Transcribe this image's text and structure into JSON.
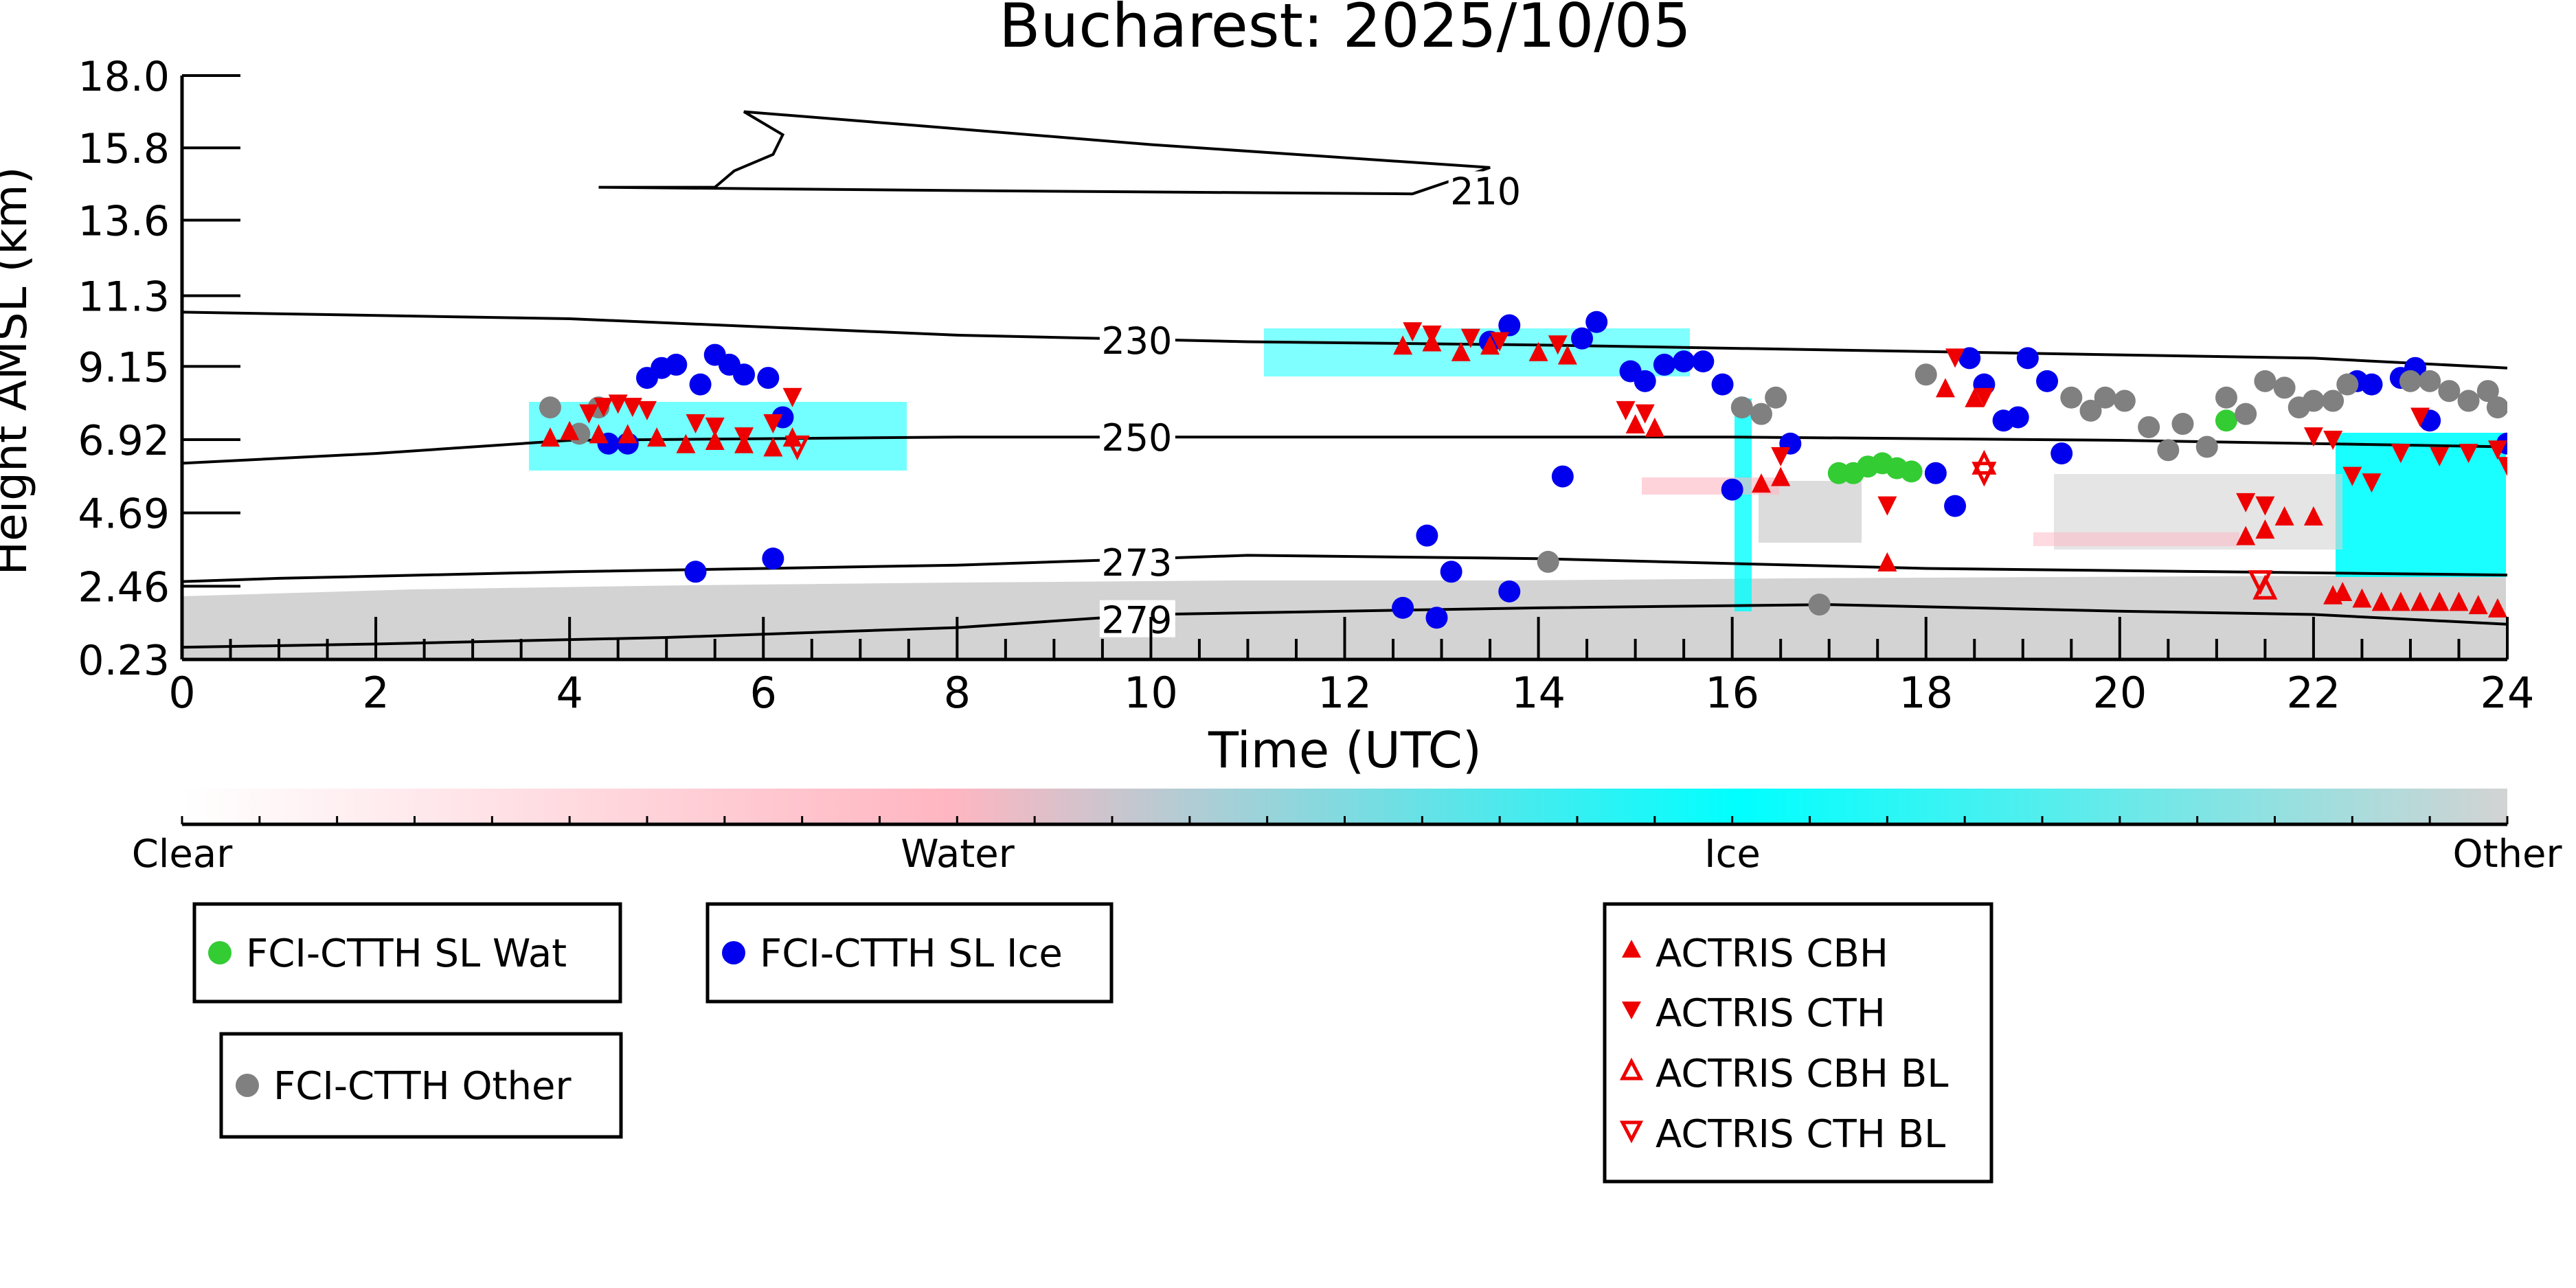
{
  "chart_data": {
    "type": "scatter",
    "title": "Bucharest: 2025/10/05",
    "xlabel": "Time (UTC)",
    "ylabel": "Height AMSL (km)",
    "xlim": [
      0,
      24
    ],
    "ylim": [
      0.23,
      18.0
    ],
    "x_ticks": [
      "0",
      "2",
      "4",
      "6",
      "8",
      "10",
      "12",
      "14",
      "16",
      "18",
      "20",
      "22",
      "24"
    ],
    "y_ticks": [
      "0.23",
      "2.46",
      "4.69",
      "6.92",
      "9.15",
      "11.3",
      "13.6",
      "15.8",
      "18.0"
    ],
    "y_tick_values": [
      0.23,
      2.46,
      4.69,
      6.92,
      9.15,
      11.3,
      13.6,
      15.8,
      18.0
    ],
    "grid": false,
    "contours": [
      {
        "label": "210",
        "points": [
          [
            4.3,
            14.6
          ],
          [
            5.5,
            14.6
          ],
          [
            5.7,
            15.1
          ],
          [
            6.1,
            15.6
          ],
          [
            6.2,
            16.2
          ],
          [
            5.8,
            16.9
          ],
          [
            7.5,
            16.5
          ],
          [
            10,
            15.9
          ],
          [
            13.5,
            15.2
          ],
          [
            12.7,
            14.4
          ],
          [
            8,
            14.5
          ],
          [
            4.3,
            14.6
          ]
        ],
        "label_at": [
          13.1,
          14.5
        ]
      },
      {
        "label": "230",
        "points": [
          [
            0,
            10.8
          ],
          [
            4,
            10.6
          ],
          [
            8,
            10.1
          ],
          [
            11,
            9.9
          ],
          [
            14,
            9.8
          ],
          [
            18,
            9.6
          ],
          [
            22,
            9.4
          ],
          [
            24,
            9.1
          ]
        ],
        "label_at": [
          9.5,
          9.95
        ]
      },
      {
        "label": "250",
        "points": [
          [
            0,
            6.2
          ],
          [
            2,
            6.5
          ],
          [
            4,
            6.9
          ],
          [
            8,
            7.0
          ],
          [
            12,
            7.0
          ],
          [
            16,
            7.0
          ],
          [
            20,
            6.9
          ],
          [
            24,
            6.7
          ]
        ],
        "label_at": [
          9.5,
          7.0
        ]
      },
      {
        "label": "273",
        "points": [
          [
            0,
            2.6
          ],
          [
            1,
            2.7
          ],
          [
            4,
            2.9
          ],
          [
            8,
            3.1
          ],
          [
            11,
            3.4
          ],
          [
            14,
            3.3
          ],
          [
            18,
            3.0
          ],
          [
            21,
            2.9
          ],
          [
            24,
            2.8
          ]
        ],
        "label_at": [
          9.5,
          3.2
        ]
      },
      {
        "label": "279",
        "points": [
          [
            0,
            0.6
          ],
          [
            2,
            0.7
          ],
          [
            5,
            0.9
          ],
          [
            8,
            1.2
          ],
          [
            10,
            1.6
          ],
          [
            14,
            1.8
          ],
          [
            17,
            1.9
          ],
          [
            20,
            1.7
          ],
          [
            22,
            1.6
          ],
          [
            24,
            1.3
          ]
        ],
        "label_at": [
          9.5,
          1.45
        ]
      }
    ],
    "colorbar": {
      "labels": [
        "Clear",
        "Water",
        "Ice",
        "Other"
      ],
      "colors": [
        "#ffffff",
        "#ffb6c1",
        "#00ffff",
        "#d3d3d3"
      ]
    },
    "series": [
      {
        "name": "FCI-CTTH SL Wat",
        "marker": "circle",
        "color": "#33cc33",
        "points": [
          [
            17.1,
            5.9
          ],
          [
            17.25,
            5.9
          ],
          [
            17.4,
            6.1
          ],
          [
            17.55,
            6.2
          ],
          [
            17.7,
            6.05
          ],
          [
            17.85,
            5.95
          ],
          [
            21.1,
            7.5
          ]
        ]
      },
      {
        "name": "FCI-CTTH SL Ice",
        "marker": "circle",
        "color": "#0000ee",
        "points": [
          [
            4.4,
            6.8
          ],
          [
            4.6,
            6.8
          ],
          [
            4.8,
            8.8
          ],
          [
            4.95,
            9.1
          ],
          [
            5.1,
            9.2
          ],
          [
            5.35,
            8.6
          ],
          [
            5.5,
            9.5
          ],
          [
            5.65,
            9.2
          ],
          [
            5.8,
            8.9
          ],
          [
            6.05,
            8.8
          ],
          [
            6.2,
            7.6
          ],
          [
            5.3,
            2.9
          ],
          [
            6.1,
            3.3
          ],
          [
            12.6,
            1.8
          ],
          [
            12.85,
            4.0
          ],
          [
            12.95,
            1.5
          ],
          [
            13.1,
            2.9
          ],
          [
            13.7,
            2.3
          ],
          [
            13.5,
            9.9
          ],
          [
            13.7,
            10.4
          ],
          [
            14.45,
            10.0
          ],
          [
            14.6,
            10.5
          ],
          [
            14.95,
            9.0
          ],
          [
            15.1,
            8.7
          ],
          [
            15.3,
            9.2
          ],
          [
            15.5,
            9.3
          ],
          [
            15.7,
            9.3
          ],
          [
            15.9,
            8.6
          ],
          [
            16.0,
            5.4
          ],
          [
            16.6,
            6.8
          ],
          [
            14.25,
            5.8
          ],
          [
            18.1,
            5.9
          ],
          [
            18.3,
            4.9
          ],
          [
            18.45,
            9.4
          ],
          [
            18.6,
            8.6
          ],
          [
            18.8,
            7.5
          ],
          [
            18.95,
            7.6
          ],
          [
            19.05,
            9.4
          ],
          [
            19.25,
            8.7
          ],
          [
            19.4,
            6.5
          ],
          [
            22.45,
            8.7
          ],
          [
            22.6,
            8.6
          ],
          [
            22.9,
            8.8
          ],
          [
            23.05,
            9.1
          ],
          [
            23.2,
            7.5
          ],
          [
            24.0,
            6.8
          ]
        ]
      },
      {
        "name": "FCI-CTTH Other",
        "marker": "circle",
        "color": "#808080",
        "points": [
          [
            3.8,
            7.9
          ],
          [
            4.1,
            7.1
          ],
          [
            4.3,
            7.9
          ],
          [
            14.1,
            3.2
          ],
          [
            16.1,
            7.9
          ],
          [
            16.3,
            7.7
          ],
          [
            16.45,
            8.2
          ],
          [
            16.9,
            1.9
          ],
          [
            18.0,
            8.9
          ],
          [
            19.5,
            8.2
          ],
          [
            19.7,
            7.8
          ],
          [
            19.85,
            8.2
          ],
          [
            20.05,
            8.1
          ],
          [
            20.3,
            7.3
          ],
          [
            20.5,
            6.6
          ],
          [
            20.65,
            7.4
          ],
          [
            20.9,
            6.7
          ],
          [
            21.1,
            8.2
          ],
          [
            21.3,
            7.7
          ],
          [
            21.5,
            8.7
          ],
          [
            21.7,
            8.5
          ],
          [
            21.85,
            7.9
          ],
          [
            22.0,
            8.1
          ],
          [
            22.2,
            8.1
          ],
          [
            22.35,
            8.6
          ],
          [
            23.0,
            8.7
          ],
          [
            23.2,
            8.7
          ],
          [
            23.4,
            8.4
          ],
          [
            23.6,
            8.1
          ],
          [
            23.8,
            8.4
          ],
          [
            23.9,
            7.9
          ]
        ]
      },
      {
        "name": "ACTRIS CBH",
        "marker": "triangle-up",
        "color": "#ee0000",
        "filled": true,
        "points": [
          [
            3.8,
            7.0
          ],
          [
            4.0,
            7.2
          ],
          [
            4.3,
            7.1
          ],
          [
            4.6,
            7.1
          ],
          [
            4.9,
            7.0
          ],
          [
            5.2,
            6.8
          ],
          [
            5.5,
            6.9
          ],
          [
            5.8,
            6.8
          ],
          [
            6.1,
            6.7
          ],
          [
            6.3,
            7.0
          ],
          [
            12.6,
            9.8
          ],
          [
            12.9,
            9.9
          ],
          [
            13.2,
            9.6
          ],
          [
            13.5,
            9.8
          ],
          [
            14.0,
            9.6
          ],
          [
            14.3,
            9.5
          ],
          [
            15.0,
            7.4
          ],
          [
            15.2,
            7.3
          ],
          [
            16.3,
            5.6
          ],
          [
            16.5,
            5.8
          ],
          [
            17.6,
            3.2
          ],
          [
            18.2,
            8.5
          ],
          [
            18.5,
            8.2
          ],
          [
            21.3,
            4.0
          ],
          [
            21.5,
            4.2
          ],
          [
            21.7,
            4.6
          ],
          [
            22.0,
            4.6
          ],
          [
            22.2,
            2.2
          ],
          [
            22.3,
            2.3
          ],
          [
            22.5,
            2.1
          ],
          [
            22.7,
            2.0
          ],
          [
            22.9,
            2.0
          ],
          [
            23.1,
            2.0
          ],
          [
            23.3,
            2.0
          ],
          [
            23.5,
            2.0
          ],
          [
            23.7,
            1.9
          ],
          [
            23.9,
            1.8
          ]
        ]
      },
      {
        "name": "ACTRIS CTH",
        "marker": "triangle-down",
        "color": "#ee0000",
        "filled": true,
        "points": [
          [
            4.2,
            7.7
          ],
          [
            4.35,
            7.9
          ],
          [
            4.5,
            8.0
          ],
          [
            4.65,
            7.9
          ],
          [
            4.8,
            7.8
          ],
          [
            5.3,
            7.4
          ],
          [
            5.5,
            7.3
          ],
          [
            5.8,
            7.0
          ],
          [
            6.1,
            7.4
          ],
          [
            6.3,
            8.2
          ],
          [
            12.7,
            10.2
          ],
          [
            12.9,
            10.1
          ],
          [
            13.3,
            10.0
          ],
          [
            13.6,
            9.9
          ],
          [
            14.2,
            9.8
          ],
          [
            14.9,
            7.8
          ],
          [
            15.1,
            7.7
          ],
          [
            16.5,
            6.4
          ],
          [
            17.6,
            4.9
          ],
          [
            18.3,
            9.4
          ],
          [
            18.6,
            8.2
          ],
          [
            21.3,
            5.0
          ],
          [
            21.5,
            4.9
          ],
          [
            22.0,
            7.0
          ],
          [
            22.2,
            6.9
          ],
          [
            22.4,
            5.8
          ],
          [
            22.6,
            5.6
          ],
          [
            22.9,
            6.5
          ],
          [
            23.1,
            7.6
          ],
          [
            23.3,
            6.4
          ],
          [
            23.6,
            6.5
          ],
          [
            23.9,
            6.6
          ],
          [
            24.0,
            6.1
          ]
        ]
      },
      {
        "name": "ACTRIS CBH BL",
        "marker": "triangle-up",
        "color": "#ee0000",
        "filled": false,
        "points": [
          [
            18.6,
            6.2
          ],
          [
            21.5,
            2.4
          ]
        ]
      },
      {
        "name": "ACTRIS CTH BL",
        "marker": "triangle-down",
        "color": "#ee0000",
        "filled": false,
        "points": [
          [
            6.35,
            6.7
          ],
          [
            18.6,
            5.9
          ],
          [
            21.45,
            2.6
          ]
        ]
      }
    ]
  },
  "legends": {
    "wat": {
      "label": "FCI-CTTH SL Wat",
      "color": "#33cc33"
    },
    "ice": {
      "label": "FCI-CTTH SL Ice",
      "color": "#0000ee"
    },
    "other": {
      "label": "FCI-CTTH Other",
      "color": "#808080"
    },
    "actris": [
      {
        "label": "ACTRIS CBH"
      },
      {
        "label": "ACTRIS CTH"
      },
      {
        "label": "ACTRIS CBH BL"
      },
      {
        "label": "ACTRIS CTH BL"
      }
    ]
  }
}
